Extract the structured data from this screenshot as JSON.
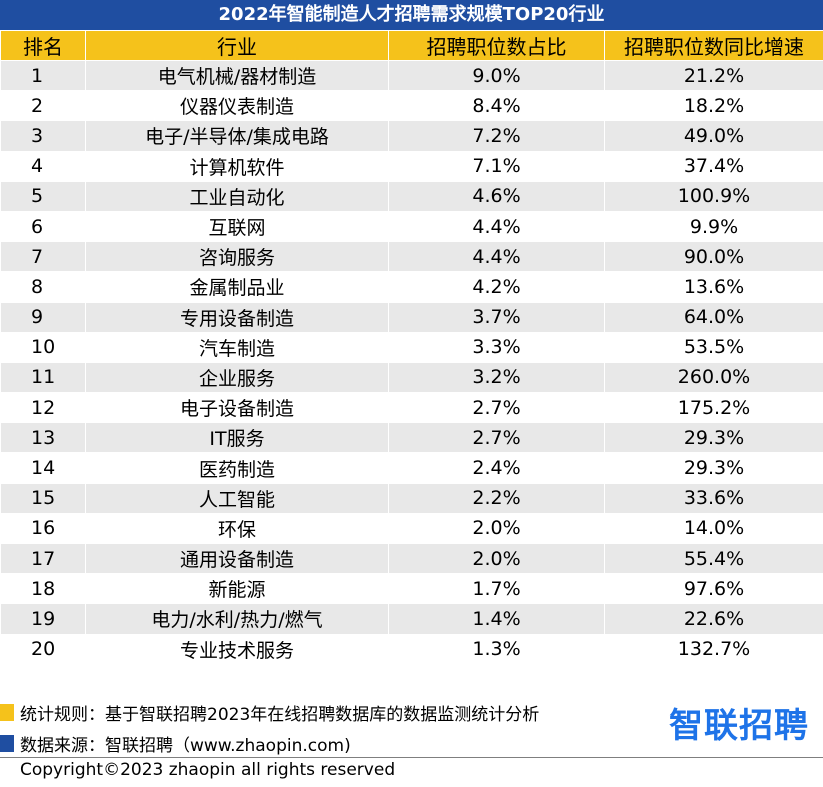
{
  "title": "2022年智能制造人才招聘需求规模TOP20行业",
  "colors": {
    "title_bg": "#1f4ea1",
    "header_bg": "#f5c21b",
    "row_alt": "#e8e8e8",
    "note_marker_1": "#f5c21b",
    "note_marker_2": "#1f4ea1",
    "brand": "#1e73e8"
  },
  "table": {
    "headers": [
      "排名",
      "行业",
      "招聘职位数占比",
      "招聘职位数同比增速"
    ],
    "rows": [
      {
        "rank": "1",
        "industry": "电气机械/器材制造",
        "share": "9.0%",
        "growth": "21.2%"
      },
      {
        "rank": "2",
        "industry": "仪器仪表制造",
        "share": "8.4%",
        "growth": "18.2%"
      },
      {
        "rank": "3",
        "industry": "电子/半导体/集成电路",
        "share": "7.2%",
        "growth": "49.0%"
      },
      {
        "rank": "4",
        "industry": "计算机软件",
        "share": "7.1%",
        "growth": "37.4%"
      },
      {
        "rank": "5",
        "industry": "工业自动化",
        "share": "4.6%",
        "growth": "100.9%"
      },
      {
        "rank": "6",
        "industry": "互联网",
        "share": "4.4%",
        "growth": "9.9%"
      },
      {
        "rank": "7",
        "industry": "咨询服务",
        "share": "4.4%",
        "growth": "90.0%"
      },
      {
        "rank": "8",
        "industry": "金属制品业",
        "share": "4.2%",
        "growth": "13.6%"
      },
      {
        "rank": "9",
        "industry": "专用设备制造",
        "share": "3.7%",
        "growth": "64.0%"
      },
      {
        "rank": "10",
        "industry": "汽车制造",
        "share": "3.3%",
        "growth": "53.5%"
      },
      {
        "rank": "11",
        "industry": "企业服务",
        "share": "3.2%",
        "growth": "260.0%"
      },
      {
        "rank": "12",
        "industry": "电子设备制造",
        "share": "2.7%",
        "growth": "175.2%"
      },
      {
        "rank": "13",
        "industry": "IT服务",
        "share": "2.7%",
        "growth": "29.3%"
      },
      {
        "rank": "14",
        "industry": "医药制造",
        "share": "2.4%",
        "growth": "29.3%"
      },
      {
        "rank": "15",
        "industry": "人工智能",
        "share": "2.2%",
        "growth": "33.6%"
      },
      {
        "rank": "16",
        "industry": "环保",
        "share": "2.0%",
        "growth": "14.0%"
      },
      {
        "rank": "17",
        "industry": "通用设备制造",
        "share": "2.0%",
        "growth": "55.4%"
      },
      {
        "rank": "18",
        "industry": "新能源",
        "share": "1.7%",
        "growth": "97.6%"
      },
      {
        "rank": "19",
        "industry": "电力/水利/热力/燃气",
        "share": "1.4%",
        "growth": "22.6%"
      },
      {
        "rank": "20",
        "industry": "专业技术服务",
        "share": "1.3%",
        "growth": "132.7%"
      }
    ]
  },
  "notes": {
    "rule": "统计规则：基于智联招聘2023年在线招聘数据库的数据监测统计分析",
    "source": "数据来源：智联招聘（www.zhaopin.com)"
  },
  "brand_logo": "智联招聘",
  "copyright": "Copyright©2023 zhaopin all rights reserved"
}
